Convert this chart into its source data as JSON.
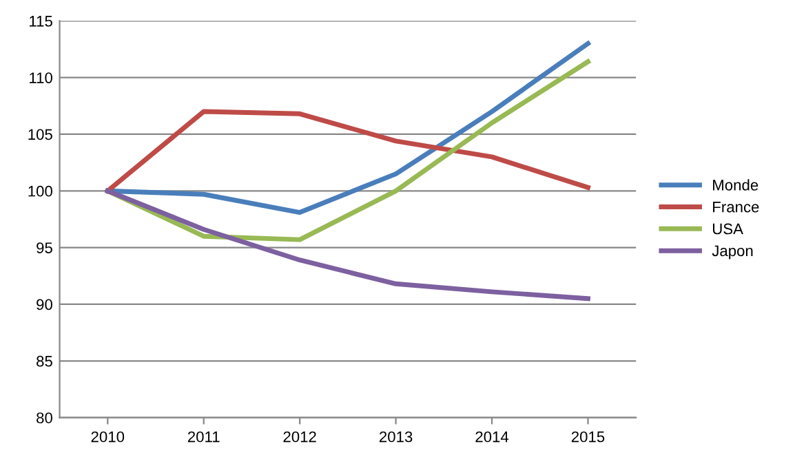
{
  "chart_data": {
    "type": "line",
    "categories": [
      "2010",
      "2011",
      "2012",
      "2013",
      "2014",
      "2015"
    ],
    "series": [
      {
        "name": "Monde",
        "color": "#4a7ebb",
        "values": [
          100,
          99.7,
          98.1,
          101.5,
          107,
          113
        ]
      },
      {
        "name": "France",
        "color": "#be4b48",
        "values": [
          100,
          107,
          106.8,
          104.4,
          103,
          100.3
        ]
      },
      {
        "name": "USA",
        "color": "#98b954",
        "values": [
          100,
          96,
          95.7,
          100,
          106,
          111.4
        ]
      },
      {
        "name": "Japon",
        "color": "#7d60a0",
        "values": [
          100,
          96.6,
          93.9,
          91.8,
          91.1,
          90.5
        ]
      }
    ],
    "ylim": [
      80,
      115
    ],
    "yticks": [
      80,
      85,
      90,
      95,
      100,
      105,
      110,
      115
    ],
    "grid": "y",
    "legend": "right",
    "marker": "none",
    "line_style": "solid"
  }
}
